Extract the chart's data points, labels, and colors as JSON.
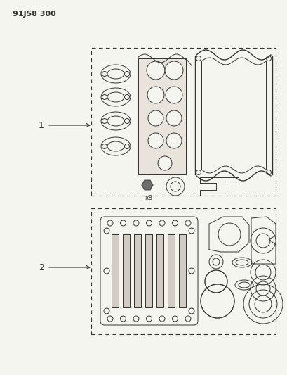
{
  "title": "91J58 300",
  "bg_color": "#f5f5f0",
  "line_color": "#333333",
  "fill_light": "#e8e4dc",
  "fill_medium": "#d0ccc4",
  "label1": "1",
  "label2": "2"
}
